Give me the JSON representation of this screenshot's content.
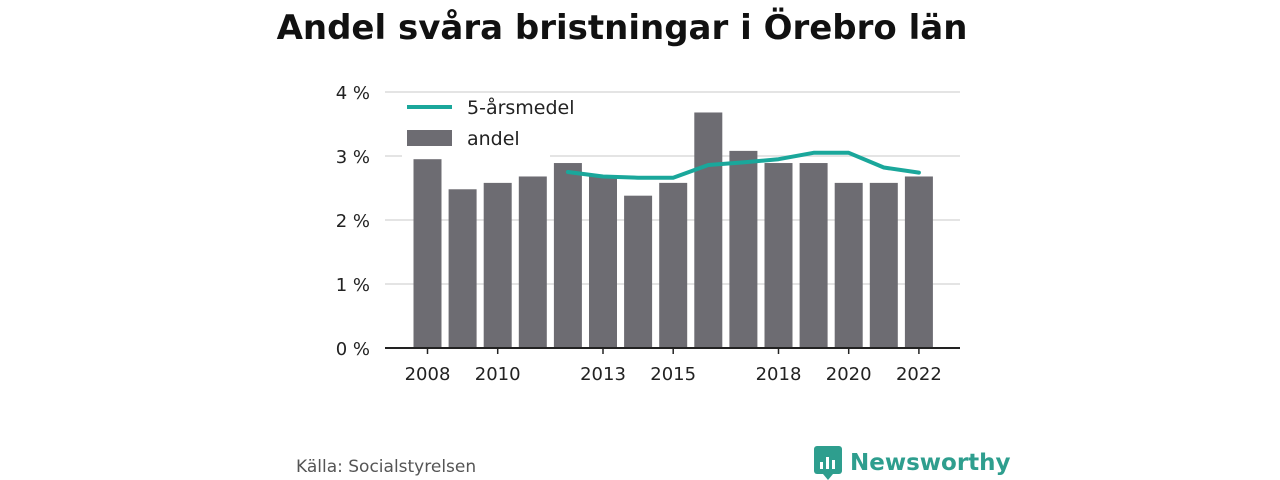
{
  "title": "Andel svåra bristningar i Örebro län",
  "source": "Källa: Socialstyrelsen",
  "logo": {
    "text": "Newsworthy",
    "icon": "newsworthy-logo-icon"
  },
  "colors": {
    "bar": "#6d6c72",
    "line": "#1aa79b",
    "grid": "#dcdcdc",
    "axis": "#222222",
    "brand": "#2e9e8e"
  },
  "chart_data": {
    "type": "bar",
    "categories": [
      "2008",
      "2009",
      "2010",
      "2011",
      "2012",
      "2013",
      "2014",
      "2015",
      "2016",
      "2017",
      "2018",
      "2019",
      "2020",
      "2021",
      "2022"
    ],
    "tick_labels": [
      "2008",
      "2010",
      "2013",
      "2015",
      "2018",
      "2020",
      "2022"
    ],
    "y_tick_labels": [
      "0 %",
      "1 %",
      "2 %",
      "3 %",
      "4 %"
    ],
    "ylim": [
      0,
      4
    ],
    "grid": true,
    "legend_position": "top-left",
    "series": [
      {
        "name": "andel",
        "kind": "bar",
        "values": [
          2.95,
          2.48,
          2.58,
          2.68,
          2.89,
          2.68,
          2.38,
          2.58,
          3.68,
          3.08,
          2.89,
          2.89,
          2.58,
          2.58,
          2.68
        ]
      },
      {
        "name": "5-årsmedel",
        "kind": "line",
        "values": [
          null,
          null,
          null,
          null,
          2.75,
          2.68,
          2.66,
          2.66,
          2.86,
          2.9,
          2.95,
          3.05,
          3.05,
          2.82,
          2.74
        ]
      }
    ]
  }
}
